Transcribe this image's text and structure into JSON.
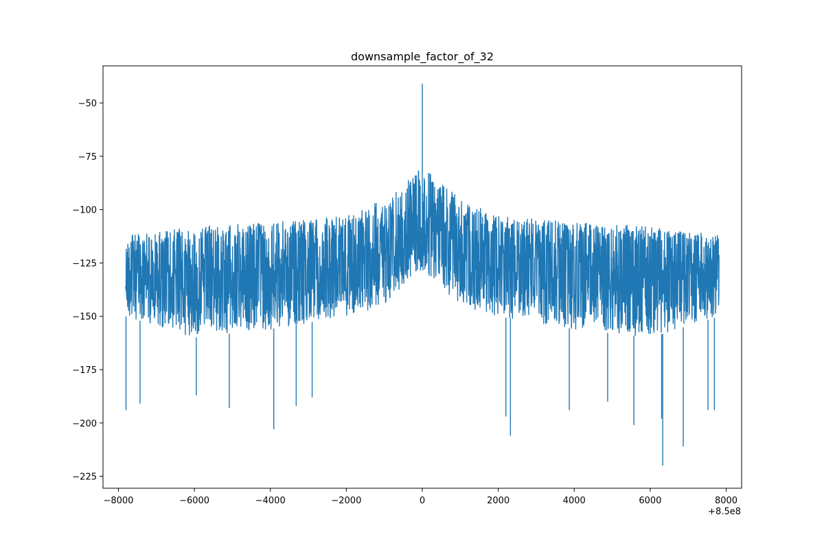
{
  "chart_data": {
    "type": "line",
    "title": "downsample_factor_of_32",
    "xlabel": "",
    "ylabel": "",
    "x_offset_label": "+8.5e8",
    "xlim": [
      -8406,
      8406
    ],
    "ylim": [
      -230.6,
      -32.6
    ],
    "x_ticks": [
      -8000,
      -6000,
      -4000,
      -2000,
      0,
      2000,
      4000,
      6000,
      8000
    ],
    "x_tick_labels": [
      "−8000",
      "−6000",
      "−4000",
      "−2000",
      "0",
      "2000",
      "4000",
      "6000",
      "8000"
    ],
    "y_ticks": [
      -50,
      -75,
      -100,
      -125,
      -150,
      -175,
      -200,
      -225
    ],
    "y_tick_labels": [
      "−50",
      "−75",
      "−100",
      "−125",
      "−150",
      "−175",
      "−200",
      "−225"
    ],
    "grid": false,
    "legend": "none",
    "series": [
      {
        "color": "#1f77b4",
        "x_start": -7812.5,
        "x_end": 7812.5,
        "peak": {
          "x": 0,
          "y": -41
        },
        "envelope": [
          {
            "x": -7812.5,
            "top": -112,
            "bottom": -150
          },
          {
            "x": -6000,
            "top": -108,
            "bottom": -160
          },
          {
            "x": -4000,
            "top": -106,
            "bottom": -156
          },
          {
            "x": -2000,
            "top": -103,
            "bottom": -150
          },
          {
            "x": -1000,
            "top": -95,
            "bottom": -145
          },
          {
            "x": 0,
            "top": -80,
            "bottom": -128
          },
          {
            "x": 1000,
            "top": -95,
            "bottom": -145
          },
          {
            "x": 2000,
            "top": -103,
            "bottom": -150
          },
          {
            "x": 4000,
            "top": -106,
            "bottom": -156
          },
          {
            "x": 6000,
            "top": -108,
            "bottom": -160
          },
          {
            "x": 7812.5,
            "top": -112,
            "bottom": -150
          }
        ],
        "notable_dips": [
          {
            "x": -7800,
            "y": -194
          },
          {
            "x": -7430,
            "y": -191
          },
          {
            "x": -5950,
            "y": -187
          },
          {
            "x": -5080,
            "y": -193
          },
          {
            "x": -3910,
            "y": -203
          },
          {
            "x": -3320,
            "y": -192
          },
          {
            "x": -2900,
            "y": -188
          },
          {
            "x": 2200,
            "y": -197
          },
          {
            "x": 2320,
            "y": -206
          },
          {
            "x": 3870,
            "y": -194
          },
          {
            "x": 4880,
            "y": -190
          },
          {
            "x": 5570,
            "y": -201
          },
          {
            "x": 6300,
            "y": -198
          },
          {
            "x": 6330,
            "y": -220
          },
          {
            "x": 6870,
            "y": -211
          },
          {
            "x": 7520,
            "y": -194
          },
          {
            "x": 7690,
            "y": -194
          }
        ]
      }
    ]
  }
}
